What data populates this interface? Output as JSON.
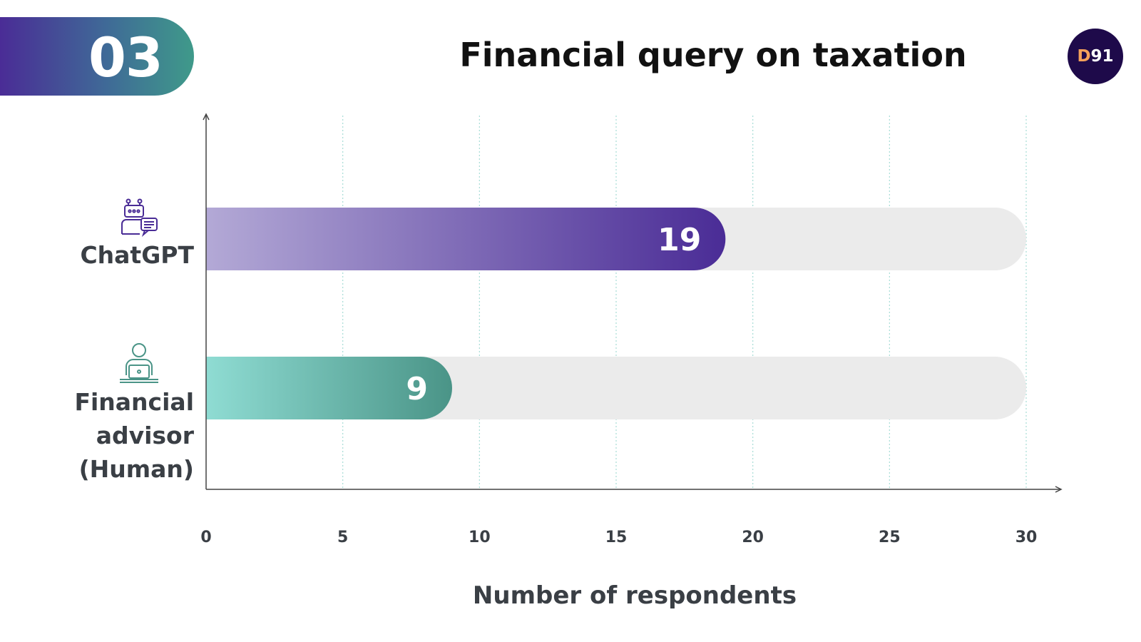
{
  "slide": {
    "number": "03",
    "title": "Financial query on taxation",
    "logo": {
      "d": "D",
      "rest": "91"
    }
  },
  "colors": {
    "chatgpt_start": "#b3a9d6",
    "chatgpt_end": "#4a2c96",
    "human_start": "#8fdcd3",
    "human_end": "#4a9487",
    "track": "#ebebeb",
    "grid": "#a6dcd6",
    "axis": "#444444"
  },
  "icons": {
    "chatgpt": "robot-chat-icon",
    "human": "person-laptop-icon"
  },
  "chart_data": {
    "type": "bar",
    "orientation": "horizontal",
    "categories": [
      "ChatGPT",
      "Financial advisor (Human)"
    ],
    "category_lines": [
      [
        "ChatGPT"
      ],
      [
        "Financial",
        "advisor",
        "(Human)"
      ]
    ],
    "values": [
      19,
      9
    ],
    "data_labels": [
      "19",
      "9"
    ],
    "xlabel": "Number of respondents",
    "ylabel": "",
    "xlim": [
      0,
      30
    ],
    "xticks": [
      0,
      5,
      10,
      15,
      20,
      25,
      30
    ],
    "tick_labels": [
      "0",
      "5",
      "10",
      "15",
      "20",
      "25",
      "30"
    ],
    "grid": "vertical-dotted",
    "legend": "none"
  }
}
